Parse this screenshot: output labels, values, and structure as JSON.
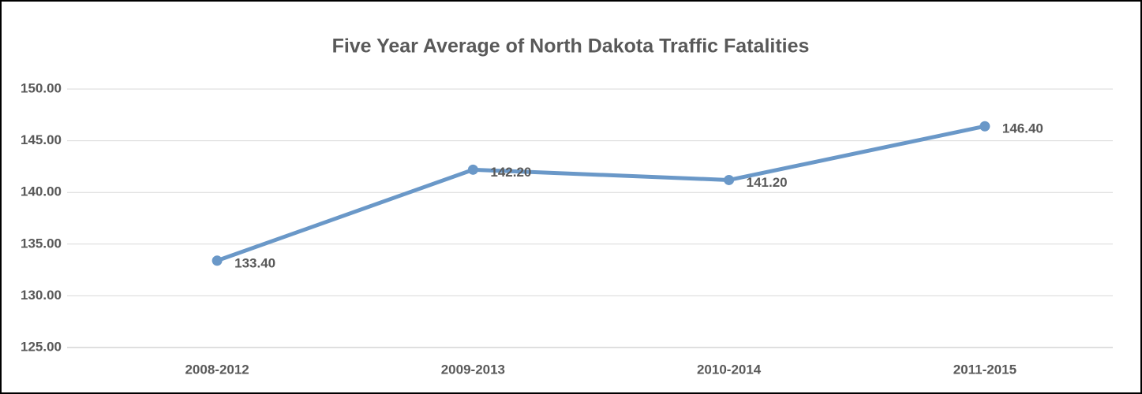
{
  "chart_data": {
    "type": "line",
    "title": "Five Year Average of North Dakota Traffic Fatalities",
    "categories": [
      "2008-2012",
      "2009-2013",
      "2010-2014",
      "2011-2015"
    ],
    "series": [
      {
        "name": "Five Year Average",
        "color": "#6a98c8",
        "values": [
          133.4,
          142.2,
          141.2,
          146.4
        ],
        "value_labels": [
          "133.40",
          "142.20",
          "141.20",
          "146.40"
        ]
      }
    ],
    "ylim": [
      125,
      150
    ],
    "yticks": [
      {
        "value": 125,
        "label": "125.00"
      },
      {
        "value": 130,
        "label": "130.00"
      },
      {
        "value": 135,
        "label": "135.00"
      },
      {
        "value": 140,
        "label": "140.00"
      },
      {
        "value": 145,
        "label": "145.00"
      },
      {
        "value": 150,
        "label": "150.00"
      }
    ],
    "grid": true
  }
}
